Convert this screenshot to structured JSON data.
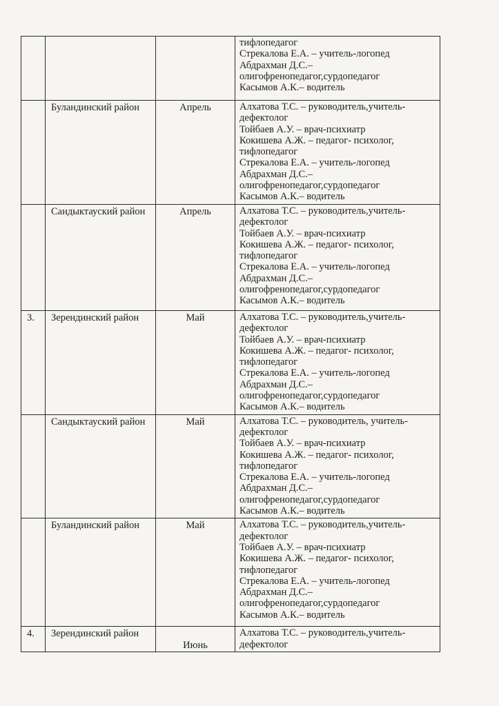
{
  "rows": [
    {
      "num": "",
      "district": "",
      "month": "",
      "staff": [
        "тифлопедагог",
        "Стрекалова Е.А. – учитель-логопед",
        "Абдрахман Д.С.–",
        "олигофренопедагог,сурдопедагог",
        "Касымов А.К.– водитель"
      ]
    },
    {
      "num": "",
      "district": "Буландинский район",
      "month": "Апрель",
      "staff": [
        "Алхатова Т.С. – руководитель,учитель-",
        "дефектолог",
        "Тойбаев А.У. – врач-психиатр",
        "Кокишева А.Ж. – педагог- психолог,",
        "тифлопедагог",
        "Стрекалова Е.А. – учитель-логопед",
        "Абдрахман Д.С.–",
        "олигофренопедагог,сурдопедагог",
        "Касымов А.К.– водитель"
      ]
    },
    {
      "num": "",
      "district": "Сандыктауский район",
      "month": "Апрель",
      "staff": [
        "Алхатова Т.С. – руководитель,учитель-",
        "дефектолог",
        "Тойбаев А.У. – врач-психиатр",
        "Кокишева А.Ж. – педагог- психолог,",
        "тифлопедагог",
        "Стрекалова Е.А. – учитель-логопед",
        "Абдрахман Д.С.–",
        "олигофренопедагог,сурдопедагог",
        "Касымов А.К.– водитель"
      ]
    },
    {
      "num": "3.",
      "district": "Зерендинский район",
      "month": "Май",
      "staff": [
        "Алхатова Т.С. – руководитель,учитель-",
        "дефектолог",
        "Тойбаев А.У. – врач-психиатр",
        "Кокишева А.Ж. – педагог- психолог,",
        "тифлопедагог",
        "Стрекалова Е.А. – учитель-логопед",
        "Абдрахман Д.С.–",
        "олигофренопедагог,сурдопедагог",
        "Касымов А.К.– водитель"
      ]
    },
    {
      "num": "",
      "district": "Сандыктауский район",
      "month": "Май",
      "staff": [
        "Алхатова Т.С. – руководитель, учитель-",
        "дефектолог",
        "Тойбаев А.У. – врач-психиатр",
        "Кокишева А.Ж. – педагог- психолог,",
        "тифлопедагог",
        "Стрекалова Е.А. – учитель-логопед",
        "Абдрахман Д.С.–",
        "олигофренопедагог,сурдопедагог",
        "Касымов А.К.– водитель"
      ]
    },
    {
      "num": "",
      "district": "Буландинский район",
      "month": "Май",
      "staff": [
        "Алхатова Т.С. – руководитель,учитель-",
        "дефектолог",
        "Тойбаев А.У. – врач-психиатр",
        "Кокишева А.Ж. – педагог- психолог,",
        "тифлопедагог",
        "Стрекалова Е.А. – учитель-логопед",
        "Абдрахман Д.С.–",
        "олигофренопедагог,сурдопедагог",
        "Касымов А.К.– водитель"
      ]
    },
    {
      "num": "4.",
      "district": "Зерендинский район",
      "month": "Июнь",
      "staff": [
        "Алхатова Т.С. – руководитель,учитель-",
        "дефектолог"
      ]
    }
  ]
}
